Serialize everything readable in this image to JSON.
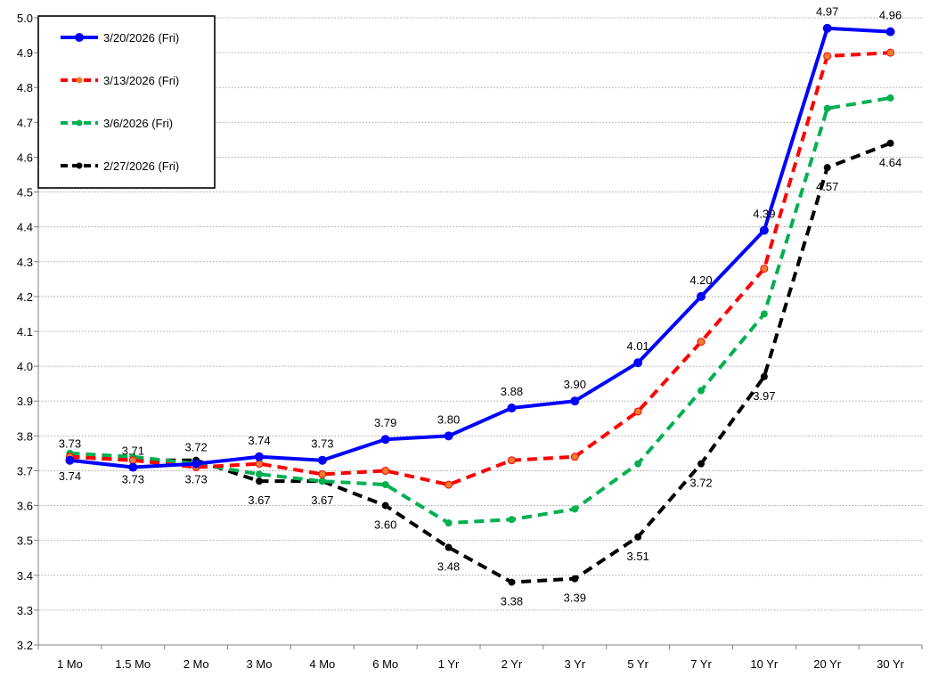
{
  "chart_data": {
    "type": "line",
    "title": "",
    "xlabel": "",
    "ylabel": "",
    "categories": [
      "1 Mo",
      "1.5 Mo",
      "2 Mo",
      "3 Mo",
      "4 Mo",
      "6 Mo",
      "1 Yr",
      "2 Yr",
      "3 Yr",
      "5 Yr",
      "7 Yr",
      "10 Yr",
      "20 Yr",
      "30 Yr"
    ],
    "ylim": [
      3.2,
      5.0
    ],
    "yticks": [
      "3.2",
      "3.3",
      "3.4",
      "3.5",
      "3.6",
      "3.7",
      "3.8",
      "3.9",
      "4.0",
      "4.1",
      "4.2",
      "4.3",
      "4.4",
      "4.5",
      "4.6",
      "4.7",
      "4.8",
      "4.9",
      "5.0"
    ],
    "grid": "horizontal dotted",
    "legend_position": "top-left",
    "series": [
      {
        "name": "3/20/2026 (Fri)",
        "color": "#0000FF",
        "dash": "solid",
        "values": [
          3.73,
          3.71,
          3.72,
          3.74,
          3.73,
          3.79,
          3.8,
          3.88,
          3.9,
          4.01,
          4.2,
          4.39,
          4.97,
          4.96
        ],
        "labels": [
          "3.73",
          "3.71",
          "3.72",
          "3.74",
          "3.73",
          "3.79",
          "3.80",
          "3.88",
          "3.90",
          "4.01",
          "4.20",
          "4.39",
          "4.97",
          "4.96"
        ],
        "label_side": "above"
      },
      {
        "name": "3/13/2026 (Fri)",
        "color": "#FF0000",
        "dash": "dashed",
        "values": [
          3.74,
          3.73,
          3.71,
          3.72,
          3.69,
          3.7,
          3.66,
          3.73,
          3.74,
          3.87,
          4.07,
          4.28,
          4.89,
          4.9
        ],
        "labels": null,
        "label_side": null
      },
      {
        "name": "3/6/2026 (Fri)",
        "color": "#00B050",
        "dash": "dashed",
        "values": [
          3.75,
          3.74,
          3.72,
          3.69,
          3.67,
          3.66,
          3.55,
          3.56,
          3.59,
          3.72,
          3.93,
          4.15,
          4.74,
          4.77
        ],
        "labels": null,
        "label_side": null
      },
      {
        "name": "2/27/2026 (Fri)",
        "color": "#000000",
        "dash": "dashed",
        "values": [
          3.74,
          3.73,
          3.73,
          3.67,
          3.67,
          3.6,
          3.48,
          3.38,
          3.39,
          3.51,
          3.72,
          3.97,
          4.57,
          4.64
        ],
        "labels": [
          "3.74",
          "3.73",
          "3.73",
          "3.67",
          "3.67",
          "3.60",
          "3.48",
          "3.38",
          "3.39",
          "3.51",
          "3.72",
          "3.97",
          "4.57",
          "4.64"
        ],
        "label_side": "below"
      }
    ]
  }
}
